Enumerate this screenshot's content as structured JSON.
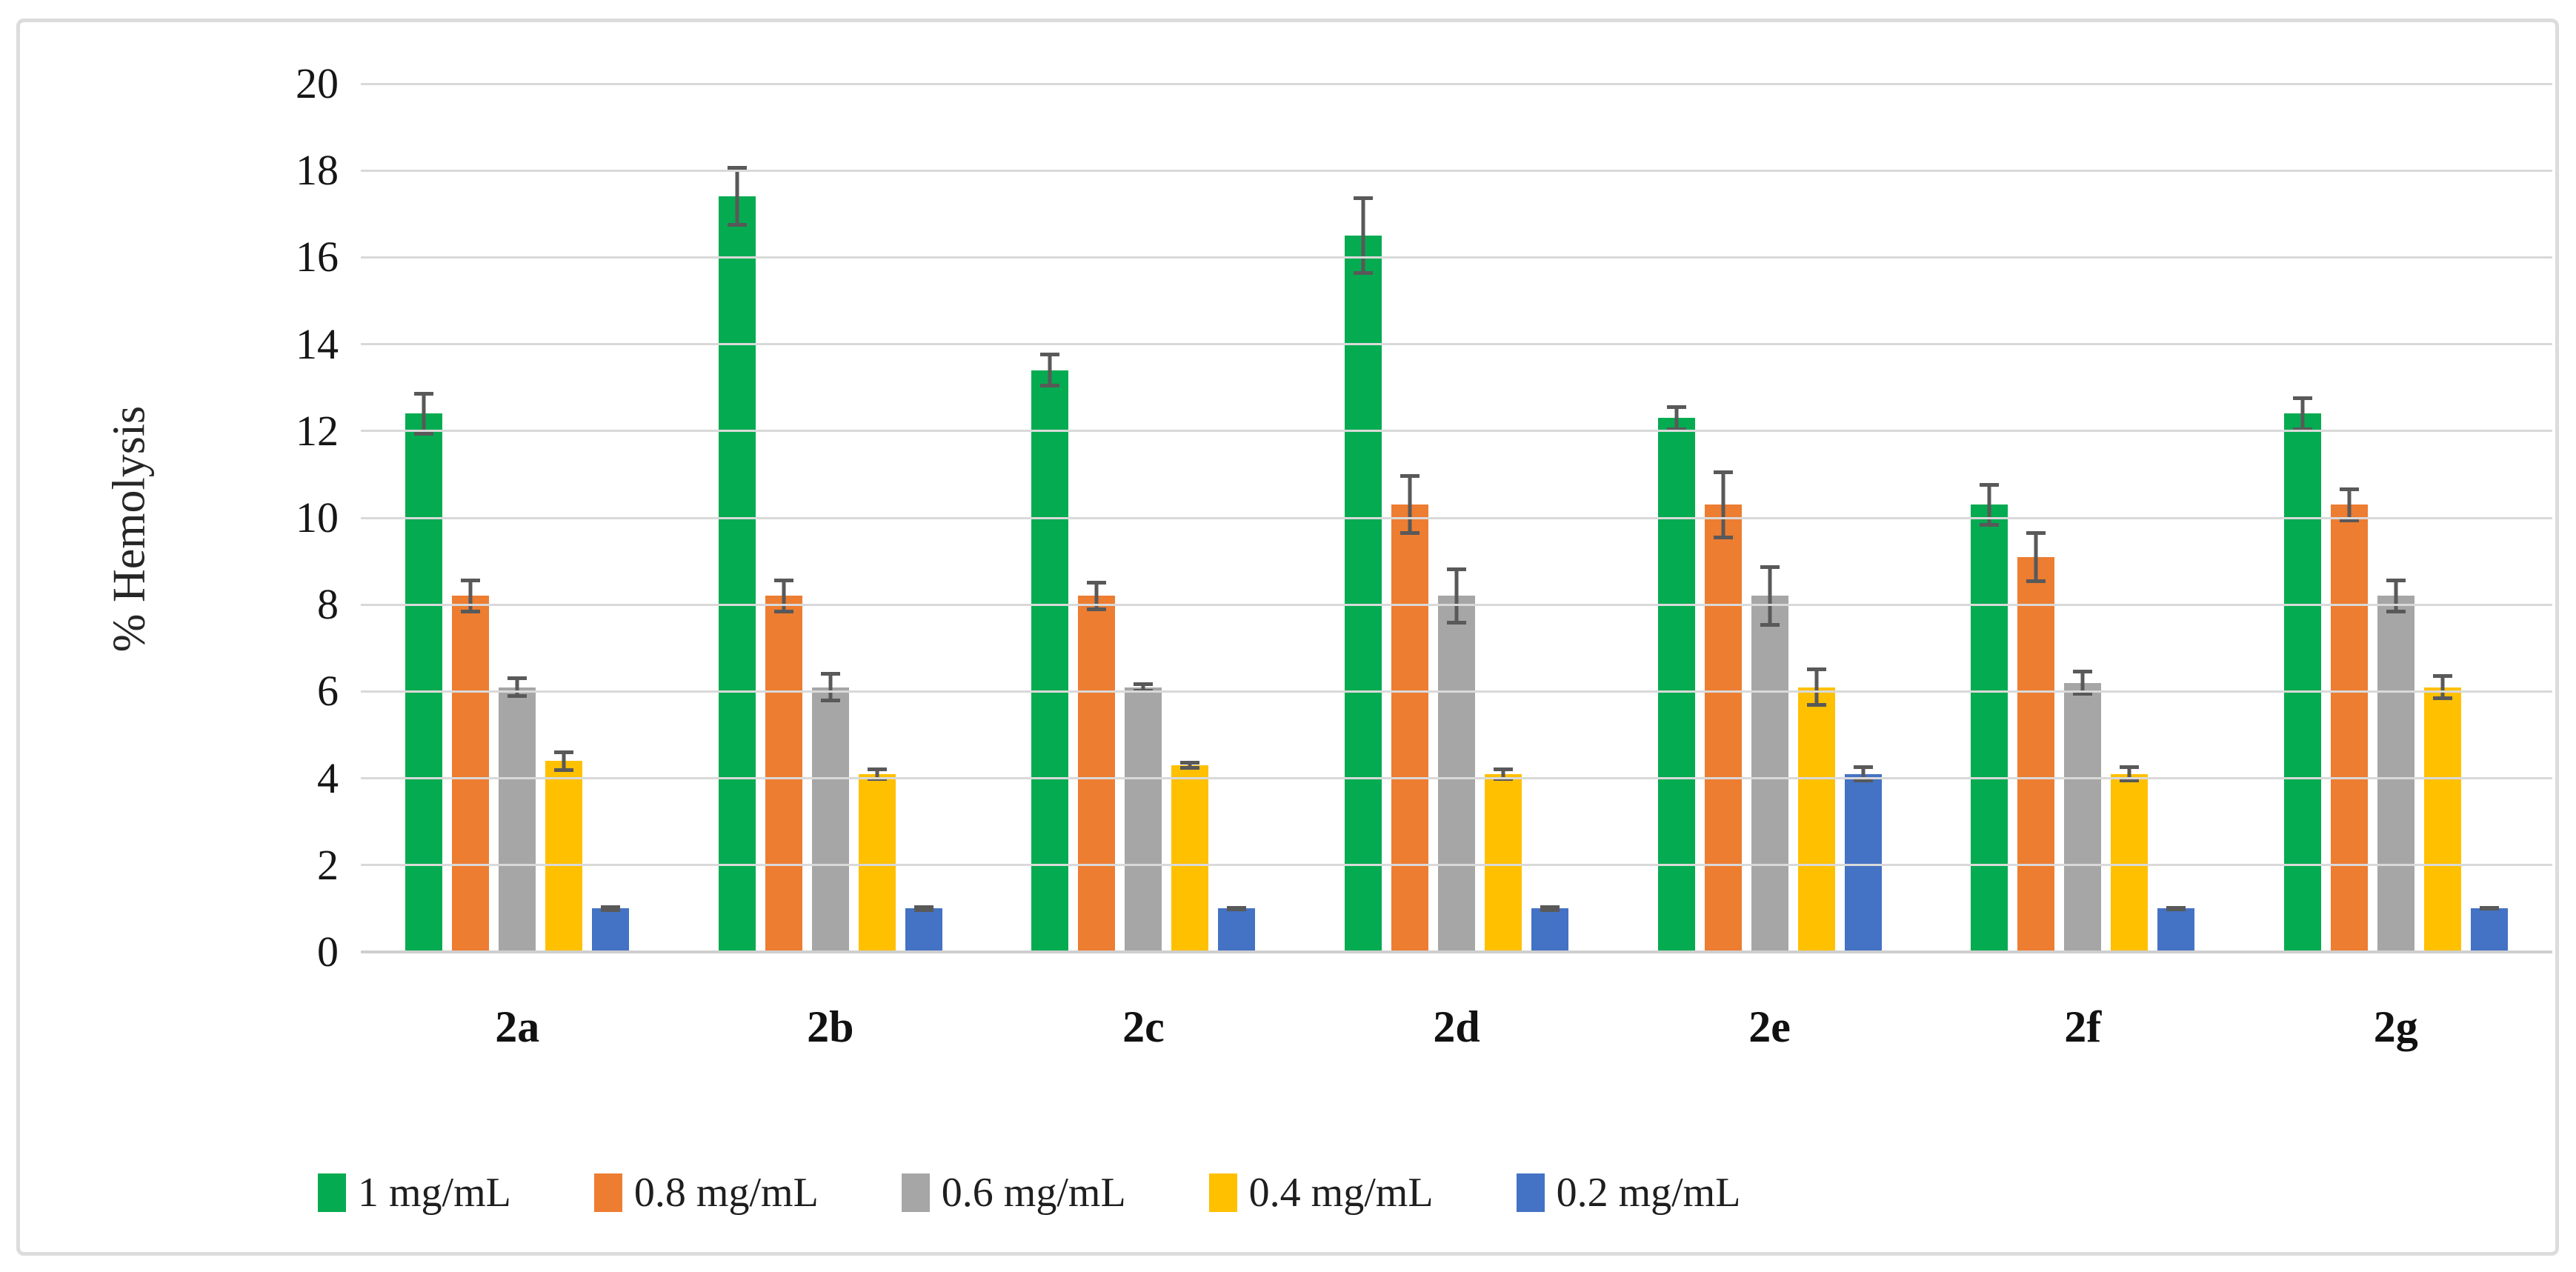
{
  "figure": {
    "background": "#ffffff",
    "border_color": "#dcdcdc"
  },
  "chart_data": {
    "type": "bar",
    "title": "",
    "xlabel": "",
    "ylabel": "% Hemolysis",
    "ylim": [
      0,
      20
    ],
    "ytick_step": 2,
    "ytick_labels": [
      "0",
      "2",
      "4",
      "6",
      "8",
      "10",
      "12",
      "14",
      "16",
      "18",
      "20"
    ],
    "grid": "horizontal",
    "gridline_color": "#d9d9d9",
    "axis_line_color": "#cfcfcf",
    "error_bar_color": "#595959",
    "legend_position": "bottom",
    "categories": [
      "2a",
      "2b",
      "2c",
      "2d",
      "2e",
      "2f",
      "2g"
    ],
    "series": [
      {
        "name": "1 mg/mL",
        "color": "#05ab50",
        "values": [
          12.4,
          17.4,
          13.4,
          16.5,
          12.3,
          10.3,
          12.4
        ],
        "errors": [
          0.5,
          0.7,
          0.4,
          0.9,
          0.3,
          0.5,
          0.4
        ]
      },
      {
        "name": "0.8 mg/mL",
        "color": "#ed7d31",
        "values": [
          8.2,
          8.2,
          8.2,
          10.3,
          10.3,
          9.1,
          10.3
        ],
        "errors": [
          0.4,
          0.4,
          0.35,
          0.7,
          0.8,
          0.6,
          0.4
        ]
      },
      {
        "name": "0.6 mg/mL",
        "color": "#a6a6a6",
        "values": [
          6.1,
          6.1,
          6.1,
          8.2,
          8.2,
          6.2,
          8.2
        ],
        "errors": [
          0.25,
          0.35,
          0.12,
          0.65,
          0.7,
          0.3,
          0.4
        ]
      },
      {
        "name": "0.4 mg/mL",
        "color": "#ffc000",
        "values": [
          4.4,
          4.1,
          4.3,
          4.1,
          6.1,
          4.1,
          6.1
        ],
        "errors": [
          0.25,
          0.15,
          0.1,
          0.15,
          0.45,
          0.2,
          0.3
        ]
      },
      {
        "name": "0.2 mg/mL",
        "color": "#4472c4",
        "values": [
          1.0,
          1.0,
          1.0,
          1.0,
          4.1,
          1.0,
          1.0
        ],
        "errors": [
          0.07,
          0.07,
          0.06,
          0.07,
          0.2,
          0.06,
          0.05
        ]
      }
    ]
  }
}
